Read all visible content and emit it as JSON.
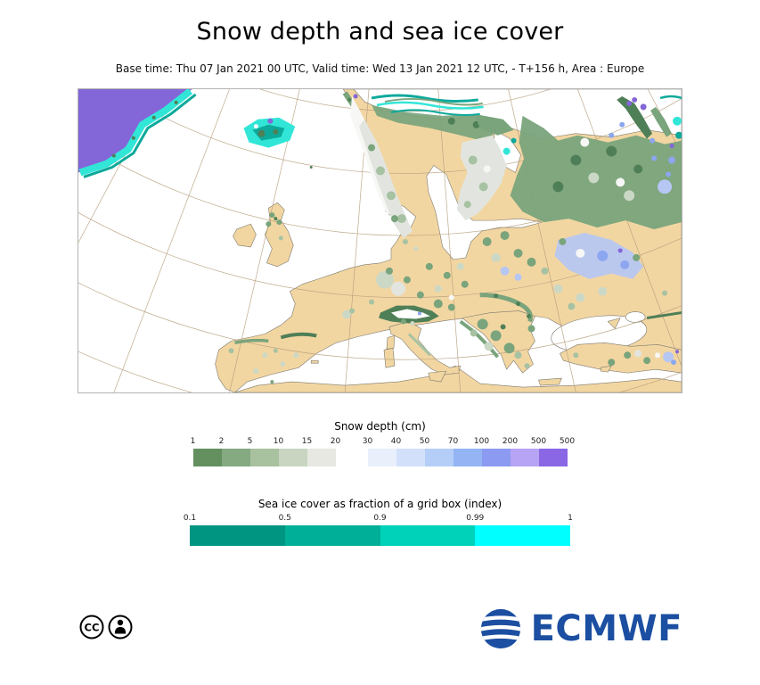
{
  "header": {
    "title": "Snow depth and sea ice cover",
    "subtitle": "Base time: Thu 07 Jan 2021 00 UTC, Valid time: Wed 13 Jan 2021 12 UTC, - T+156 h, Area : Europe"
  },
  "snow_legend": {
    "title": "Snow depth (cm)",
    "groups": [
      {
        "ticks": [
          "1",
          "2",
          "5",
          "10",
          "15",
          "20"
        ],
        "colors": [
          "#64905f",
          "#85a981",
          "#a8c19e",
          "#c9d5c0",
          "#e6e8e1"
        ]
      },
      {
        "ticks": [
          "30",
          "40",
          "50",
          "70",
          "100",
          "200",
          "500",
          "500"
        ],
        "colors": [
          "#e9f0fc",
          "#d2e1f9",
          "#b4cef7",
          "#94b4f4",
          "#8c9af1",
          "#b7a4f4",
          "#8a67e4"
        ]
      }
    ]
  },
  "sea_ice_legend": {
    "title": "Sea ice cover as fraction of a grid box (index)",
    "groups": [
      {
        "ticks": [
          "0.1",
          "0.5",
          "0.9",
          "0.99",
          "1"
        ],
        "colors": [
          "#009580",
          "#00af97",
          "#00d2ba",
          "#00ffff"
        ]
      }
    ]
  },
  "footer": {
    "logo_text": "ECMWF",
    "license": "CC BY"
  },
  "colors": {
    "land": "#f2d6a2",
    "coast": "#7d7a6e",
    "graticule": "#b49b79",
    "g-dark": "#4f7f57",
    "g-mid": "#79a47c",
    "g-light": "#a6c2a2",
    "g-pale": "#ccd8c6",
    "gray-snow": "#e2e5df",
    "white-snow": "#f7f8f5",
    "b-light": "#b6c7f4",
    "b-mid": "#8ca6f0",
    "purple": "#8366d8",
    "teal": "#0da99b",
    "cyan": "#31e6d7",
    "ecmwf-blue": "#1c4fa1"
  }
}
